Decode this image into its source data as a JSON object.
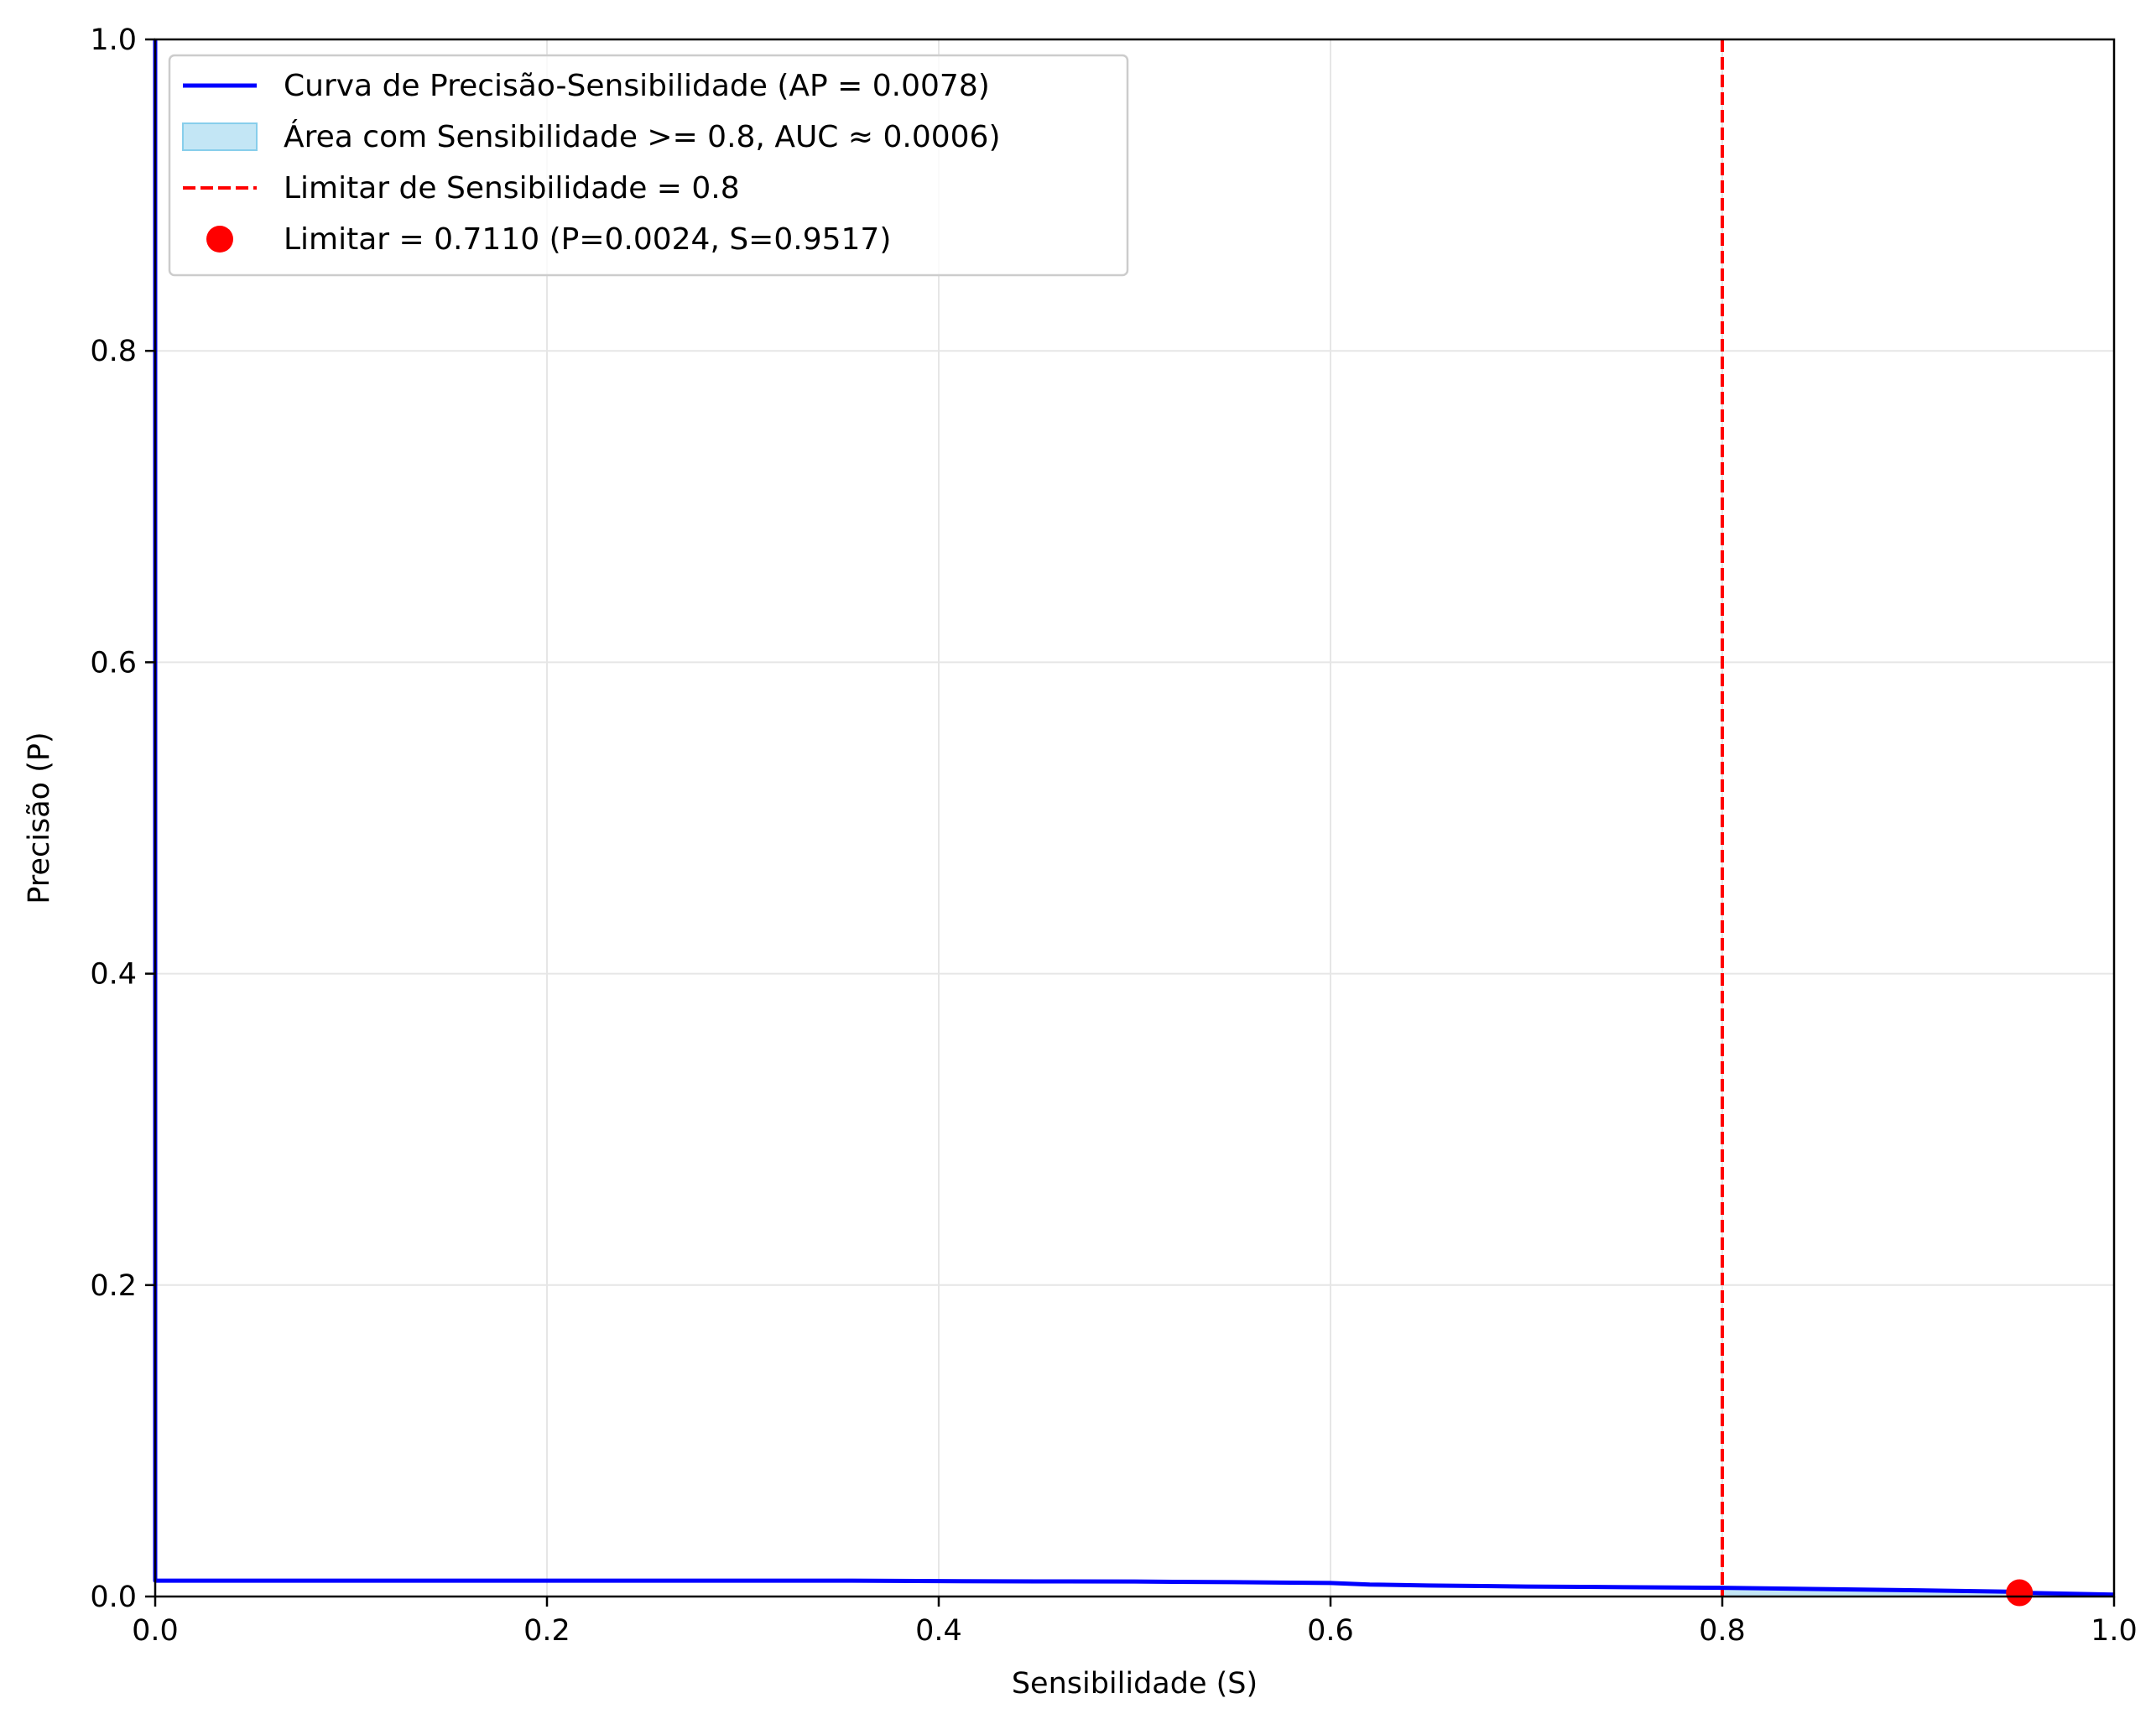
{
  "chart_data": {
    "type": "line",
    "xlabel": "Sensibilidade (S)",
    "ylabel": "Precisão (P)",
    "xlim": [
      0.0,
      1.0
    ],
    "ylim": [
      0.0,
      1.0
    ],
    "grid": true,
    "legend_position": "top-left",
    "x_ticks": [
      "0.0",
      "0.2",
      "0.4",
      "0.6",
      "0.8",
      "1.0"
    ],
    "y_ticks": [
      "0.0",
      "0.2",
      "0.4",
      "0.6",
      "0.8",
      "1.0"
    ],
    "legend": [
      {
        "label": "Curva de Precisão-Sensibilidade (AP = 0.0078)",
        "kind": "line",
        "color": "#0000ff"
      },
      {
        "label": "Área com Sensibilidade >= 0.8, AUC ≈ 0.0006)",
        "kind": "patch",
        "color": "#87ceeb"
      },
      {
        "label": "Limitar de Sensibilidade = 0.8",
        "kind": "dashed",
        "color": "#ff0000"
      },
      {
        "label": "Limitar = 0.7110 (P=0.0024, S=0.9517)",
        "kind": "marker",
        "color": "#ff0000"
      }
    ],
    "series": [
      {
        "name": "Curva de Precisão-Sensibilidade (AP = 0.0078)",
        "color": "#0000ff",
        "x": [
          0.0,
          0.0,
          0.0,
          0.05,
          0.15,
          0.25,
          0.35,
          0.4,
          0.45,
          0.5,
          0.55,
          0.6,
          0.62,
          0.65,
          0.7,
          0.75,
          0.8,
          0.85,
          0.9,
          0.95,
          0.9517,
          1.0
        ],
        "y": [
          1.0,
          0.0104,
          0.0102,
          0.0102,
          0.0102,
          0.0102,
          0.0102,
          0.0099,
          0.0097,
          0.0096,
          0.0092,
          0.0087,
          0.0077,
          0.0071,
          0.0064,
          0.006,
          0.0056,
          0.0048,
          0.004,
          0.003,
          0.0024,
          0.0012
        ]
      }
    ],
    "threshold_line": {
      "x": 0.8,
      "color": "#ff0000",
      "label": "Limitar de Sensibilidade = 0.8"
    },
    "threshold_point": {
      "x": 0.9517,
      "y": 0.0024,
      "color": "#ff0000",
      "label": "Limitar = 0.7110 (P=0.0024, S=0.9517)"
    },
    "fill_region": {
      "x_from": 0.8,
      "x_to": 1.0,
      "color": "#87ceeb"
    }
  }
}
